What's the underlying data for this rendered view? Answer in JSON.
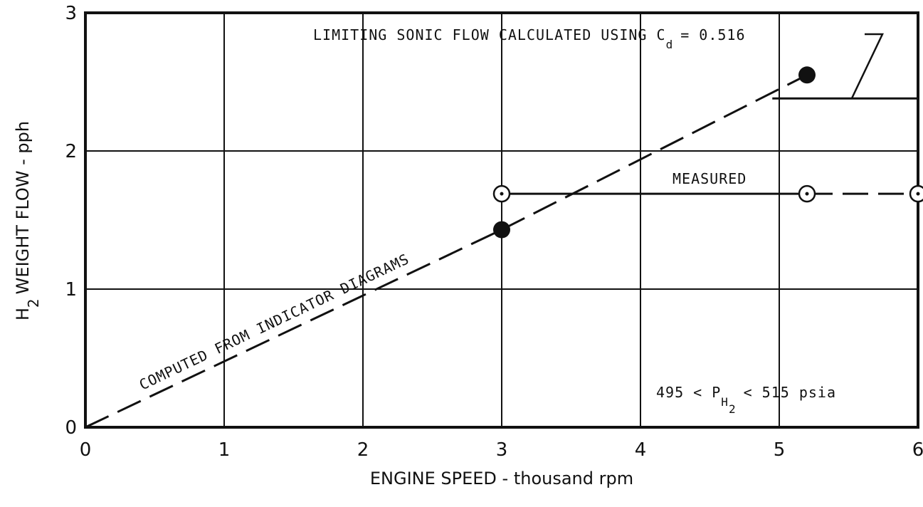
{
  "chart_data": {
    "type": "line",
    "x_label": "ENGINE SPEED - thousand rpm",
    "y_label": [
      "H",
      "2",
      "WEIGHT FLOW - pph"
    ],
    "xlim": [
      0,
      6
    ],
    "xticks": [
      0,
      1,
      2,
      3,
      4,
      5,
      6
    ],
    "ylim": [
      0,
      3
    ],
    "yticks": [
      0,
      1,
      2,
      3
    ],
    "grid": true,
    "color": "#111111",
    "series": [
      {
        "x": [
          0,
          3,
          5.2
        ],
        "values": [
          0,
          1.43,
          2.55
        ],
        "segment_styles": [
          "dashed",
          "dashed"
        ],
        "markers": [
          false,
          true,
          true
        ],
        "marker": "filled"
      },
      {
        "x": [
          3,
          5.2,
          6
        ],
        "values": [
          1.69,
          1.69,
          1.69
        ],
        "segment_styles": [
          "solid",
          "dashed"
        ],
        "markers": [
          true,
          true,
          true
        ],
        "marker": "open-dot"
      },
      {
        "x": [
          4.95,
          6
        ],
        "values": [
          2.38,
          2.38
        ],
        "segment_styles": [
          "solid"
        ],
        "markers": [
          false,
          false
        ],
        "marker": "none"
      }
    ],
    "annotations": [
      [
        "LIMITING SONIC FLOW CALCULATED USING C",
        "d",
        "= 0.516"
      ],
      [
        "COMPUTED FROM INDICATOR DIAGRAMS"
      ],
      [
        "MEASURED"
      ],
      [
        "495 < P",
        "H",
        "2",
        "< 515 psia"
      ]
    ]
  }
}
